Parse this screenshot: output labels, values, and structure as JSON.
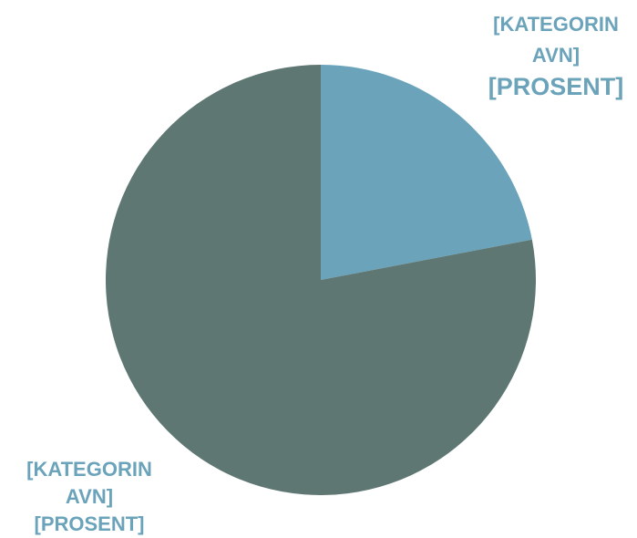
{
  "chart_data": {
    "type": "pie",
    "categories": [
      "[KATEGORINAVN]",
      "[KATEGORINAVN]"
    ],
    "values": [
      22,
      78
    ],
    "value_labels": [
      "[PROSENT]",
      "[PROSENT]"
    ],
    "colors": [
      "#6aa3ba",
      "#5e7772"
    ]
  }
}
